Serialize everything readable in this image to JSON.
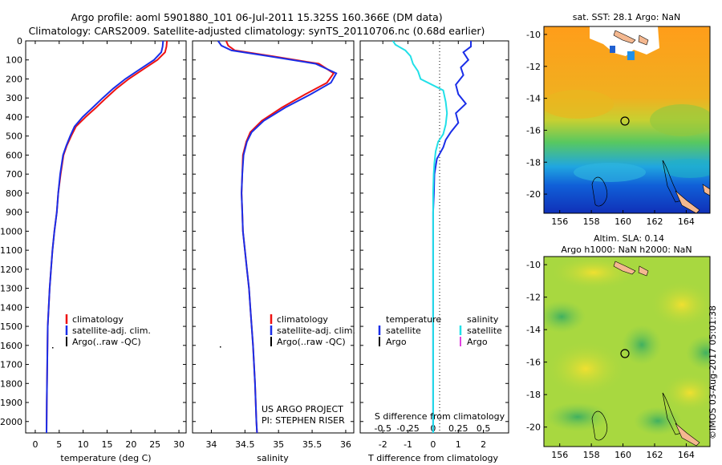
{
  "header": {
    "line1": "Argo profile: aoml 5901880_101 06-Jul-2011 15.325S 160.366E (DM data)",
    "line2": "Climatology: CARS2009. Satellite-adjusted climatology: synTS_20110706.nc (0.68d earlier)"
  },
  "colors": {
    "climatology": "#ee1111",
    "satellite": "#1a2ee8",
    "argo": "#000000",
    "sal_satellite": "#22e0e8",
    "sal_argo": "#e040e0"
  },
  "depth_axis": {
    "ticks": [
      "0",
      "100",
      "200",
      "300",
      "400",
      "500",
      "600",
      "700",
      "800",
      "900",
      "1000",
      "1100",
      "1200",
      "1300",
      "1400",
      "1500",
      "1600",
      "1700",
      "1800",
      "1900",
      "2000"
    ],
    "range": [
      0,
      2060
    ]
  },
  "temperature_panel": {
    "xlabel": "temperature (deg C)",
    "xticks": [
      "0",
      "5",
      "10",
      "15",
      "20",
      "25",
      "30"
    ],
    "xlim": [
      -2,
      31.5
    ],
    "legend": [
      "climatology",
      "satellite-adj. clim.",
      "Argo(..raw -QC)"
    ]
  },
  "salinity_panel": {
    "xlabel": "salinity",
    "xticks": [
      "34",
      "34.5",
      "35",
      "35.5",
      "36"
    ],
    "xlim": [
      33.72,
      36.12
    ],
    "legend": [
      "climatology",
      "satellite-adj. clim.",
      "Argo(..raw -QC)"
    ],
    "credit1": "US ARGO PROJECT",
    "credit2": "PI: STEPHEN RISER"
  },
  "difference_panel": {
    "top_label": "S difference from climatology",
    "top_ticks": [
      "-0.5",
      "-0.25",
      "0",
      "0.25",
      "0.5"
    ],
    "xlabel": "T difference from climatology",
    "xticks": [
      "-2",
      "-1",
      "0",
      "1",
      "2"
    ],
    "xlim": [
      -2.9,
      3.0
    ],
    "legend_temp_title": "temperature",
    "legend_sal_title": "salinity",
    "legend_satellite": "satellite",
    "legend_argo": "Argo"
  },
  "sst_map": {
    "title": "sat. SST: 28.1  Argo: NaN",
    "lat_ticks": [
      "-10",
      "-12",
      "-14",
      "-16",
      "-18",
      "-20"
    ],
    "lon_ticks": [
      "156",
      "158",
      "160",
      "162",
      "164"
    ]
  },
  "sla_map": {
    "title1": "Altim. SLA: 0.14",
    "title2": "Argo h1000: NaN h2000: NaN",
    "lat_ticks": [
      "-10",
      "-12",
      "-14",
      "-16",
      "-18",
      "-20"
    ],
    "lon_ticks": [
      "156",
      "158",
      "160",
      "162",
      "164"
    ]
  },
  "stamp": "©IMOS 03-Aug-2017 05:01:38",
  "chart_data": [
    {
      "type": "line",
      "xlabel": "temperature (deg C)",
      "ylabel": "",
      "xlim": [
        -2,
        31.5
      ],
      "ylim": [
        2060,
        0
      ],
      "series": [
        {
          "name": "climatology",
          "x": [
            27.5,
            27.4,
            27.1,
            25.5,
            22.5,
            19.5,
            17,
            14.8,
            12.7,
            10.5,
            8.5,
            7.5,
            6.6,
            5.9,
            5.3,
            4.8,
            4.5,
            4.0,
            3.6,
            3.3,
            3.0,
            2.8,
            2.6,
            2.5,
            2.4,
            2.35
          ],
          "y": [
            0,
            30,
            60,
            100,
            150,
            200,
            250,
            300,
            350,
            400,
            450,
            500,
            550,
            600,
            700,
            800,
            900,
            1000,
            1100,
            1200,
            1300,
            1400,
            1500,
            1700,
            1900,
            2060
          ]
        },
        {
          "name": "satellite-adj. clim.",
          "x": [
            26.7,
            26.6,
            26.3,
            24.8,
            21.8,
            18.8,
            16.3,
            14.1,
            12.0,
            9.9,
            8.2,
            7.3,
            6.5,
            5.8,
            5.2,
            4.8,
            4.5,
            4.0,
            3.6,
            3.3,
            3.0,
            2.8,
            2.6,
            2.5,
            2.4,
            2.35
          ],
          "y": [
            0,
            30,
            60,
            100,
            150,
            200,
            250,
            300,
            350,
            400,
            450,
            500,
            550,
            600,
            700,
            800,
            900,
            1000,
            1100,
            1200,
            1300,
            1400,
            1500,
            1700,
            1900,
            2060
          ]
        }
      ]
    },
    {
      "type": "line",
      "xlabel": "salinity",
      "ylabel": "",
      "xlim": [
        33.72,
        36.12
      ],
      "ylim": [
        2060,
        0
      ],
      "series": [
        {
          "name": "climatology",
          "x": [
            34.22,
            34.25,
            34.35,
            34.9,
            35.6,
            35.82,
            35.72,
            35.4,
            35.05,
            34.75,
            34.58,
            34.52,
            34.47,
            34.46,
            34.45,
            34.46,
            34.47,
            34.5,
            34.53,
            34.56,
            34.58,
            34.6,
            34.62,
            34.65,
            34.67,
            34.68
          ],
          "y": [
            0,
            25,
            50,
            80,
            120,
            170,
            220,
            280,
            350,
            420,
            480,
            530,
            600,
            700,
            800,
            900,
            1000,
            1100,
            1200,
            1300,
            1400,
            1500,
            1600,
            1800,
            2000,
            2060
          ]
        },
        {
          "name": "satellite-adj. clim.",
          "x": [
            34.1,
            34.15,
            34.3,
            34.85,
            35.55,
            35.86,
            35.78,
            35.48,
            35.1,
            34.78,
            34.6,
            34.53,
            34.48,
            34.46,
            34.45,
            34.46,
            34.47,
            34.5,
            34.53,
            34.56,
            34.58,
            34.6,
            34.62,
            34.65,
            34.67,
            34.68
          ],
          "y": [
            0,
            25,
            50,
            80,
            120,
            170,
            220,
            280,
            350,
            420,
            480,
            530,
            600,
            700,
            800,
            900,
            1000,
            1100,
            1200,
            1300,
            1400,
            1500,
            1600,
            1800,
            2000,
            2060
          ]
        }
      ]
    },
    {
      "type": "line",
      "xlabel": "T difference from climatology",
      "ylabel": "",
      "xlim": [
        -2.9,
        3.0
      ],
      "ylim": [
        2060,
        0
      ],
      "series": [
        {
          "name": "temperature satellite",
          "x": [
            1.5,
            1.5,
            1.2,
            1.4,
            1.1,
            1.2,
            0.9,
            1.0,
            1.3,
            0.9,
            1.0,
            0.7,
            0.5,
            0.4,
            0.15,
            0.05,
            0.03,
            0,
            0,
            0,
            0,
            0,
            0
          ],
          "y": [
            0,
            30,
            60,
            100,
            140,
            180,
            230,
            280,
            330,
            380,
            430,
            480,
            520,
            560,
            620,
            700,
            800,
            900,
            1100,
            1300,
            1500,
            1800,
            2060
          ]
        },
        {
          "name": "salinity satellite",
          "x": [
            -1.6,
            -1.5,
            -1.1,
            -0.9,
            -0.8,
            -0.6,
            -0.5,
            0.4,
            0.5,
            0.55,
            0.5,
            0.4,
            0.2,
            0.1,
            0.05,
            0.02,
            0,
            0,
            0,
            0,
            0
          ],
          "y": [
            0,
            20,
            50,
            80,
            120,
            160,
            200,
            260,
            320,
            380,
            440,
            490,
            530,
            580,
            640,
            700,
            800,
            1000,
            1300,
            1700,
            2060
          ]
        }
      ]
    }
  ]
}
